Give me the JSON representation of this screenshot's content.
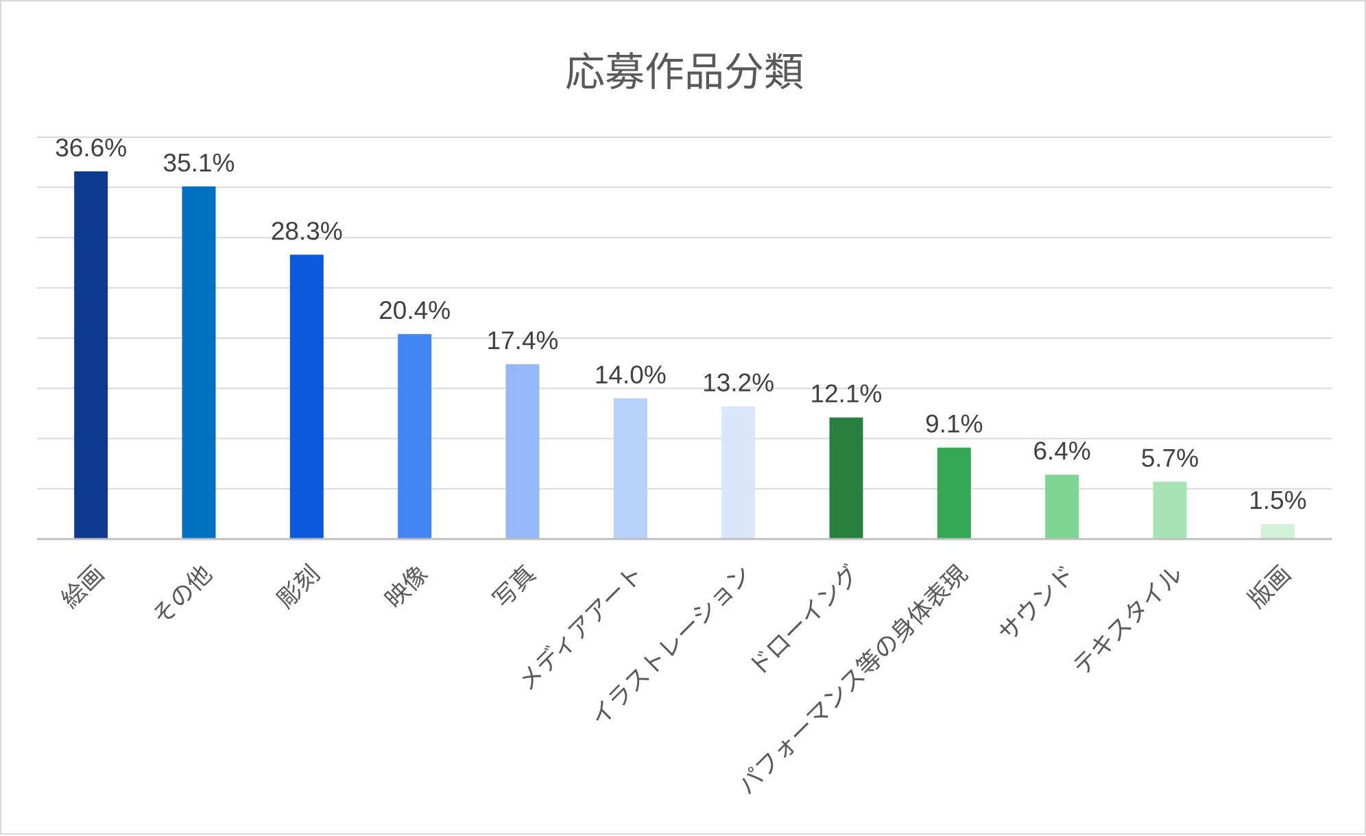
{
  "chart_data": {
    "type": "bar",
    "title": "応募作品分類",
    "xlabel": "",
    "ylabel": "",
    "ylim": [
      0,
      40
    ],
    "grid": true,
    "legend": "none",
    "value_suffix": "%",
    "categories": [
      "絵画",
      "その他",
      "彫刻",
      "映像",
      "写真",
      "メディアアート",
      "イラストレーション",
      "ドローイング",
      "パフォーマンス等の身体表現",
      "サウンド",
      "テキスタイル",
      "版画"
    ],
    "values": [
      36.6,
      35.1,
      28.3,
      20.4,
      17.4,
      14.0,
      13.2,
      12.1,
      9.1,
      6.4,
      5.7,
      1.5
    ],
    "data_labels": [
      "36.6%",
      "35.1%",
      "28.3%",
      "20.4%",
      "17.4%",
      "14.0%",
      "13.2%",
      "12.1%",
      "9.1%",
      "6.4%",
      "5.7%",
      "1.5%"
    ],
    "colors": [
      "#0d3a8f",
      "#0070c0",
      "#0c5adb",
      "#4286f4",
      "#95b9f8",
      "#b8d1fb",
      "#d9e6fc",
      "#28803f",
      "#35a853",
      "#7dd593",
      "#a6e4b5",
      "#d2f2da"
    ]
  }
}
